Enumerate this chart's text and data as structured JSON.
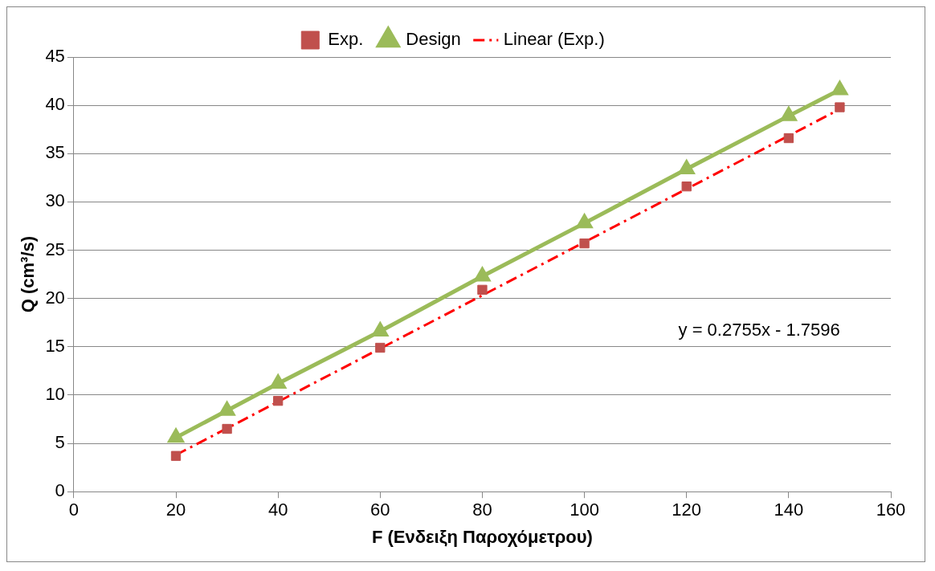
{
  "chart_data": {
    "type": "scatter",
    "xlabel": "F (Ενδειξη Παροχόμετρου)",
    "ylabel": "Q (cm³/s)",
    "xlim": [
      0,
      160
    ],
    "xticks": [
      0,
      20,
      40,
      60,
      80,
      100,
      120,
      140,
      160
    ],
    "ylim": [
      0,
      45
    ],
    "yticks": [
      0,
      5,
      10,
      15,
      20,
      25,
      30,
      35,
      40,
      45
    ],
    "grid": "y",
    "legend": "top",
    "series": [
      {
        "name": "Exp.",
        "type": "scatter",
        "marker": "square",
        "color": "#c0504d",
        "x": [
          20,
          30,
          40,
          60,
          80,
          100,
          120,
          140,
          150
        ],
        "values": [
          3.7,
          6.5,
          9.4,
          14.9,
          20.9,
          25.7,
          31.6,
          36.6,
          39.8
        ]
      },
      {
        "name": "Design",
        "type": "line",
        "marker": "triangle",
        "line_style": "solid",
        "color": "#9bbb59",
        "x": [
          20,
          30,
          40,
          60,
          80,
          100,
          120,
          140,
          150
        ],
        "values": [
          5.6,
          8.4,
          11.2,
          16.6,
          22.3,
          27.8,
          33.4,
          38.9,
          41.6
        ]
      },
      {
        "name": "Linear (Exp.)",
        "type": "line",
        "marker": "none",
        "line_style": "dashed",
        "color": "#ff0000",
        "x": [
          20,
          150
        ],
        "values": [
          3.8,
          39.6
        ]
      }
    ],
    "annotations": [
      "y = 0.2755x - 1.7596"
    ]
  }
}
